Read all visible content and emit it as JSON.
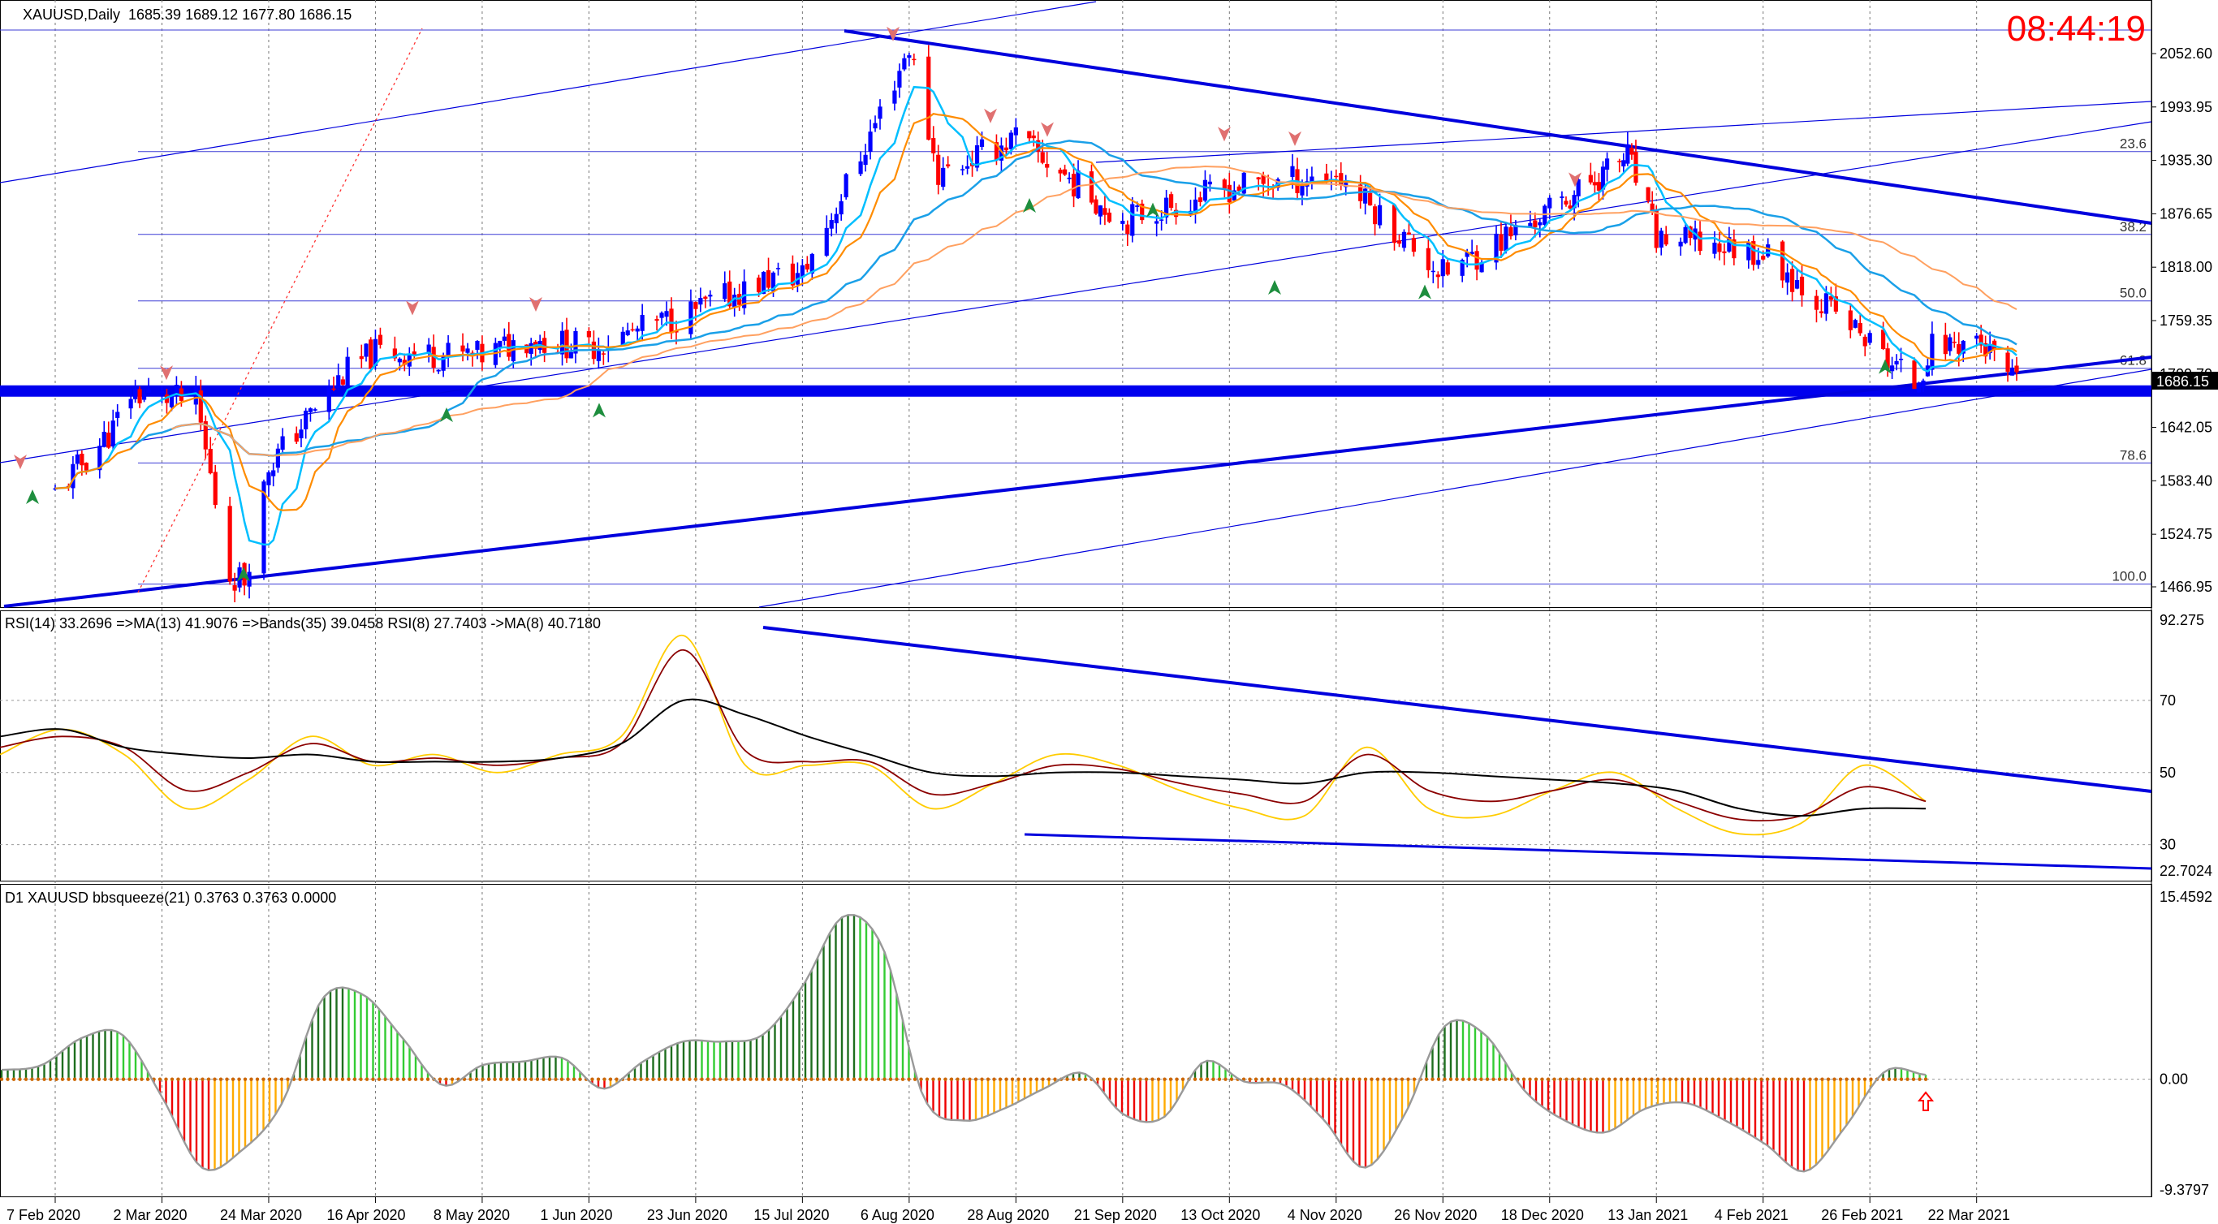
{
  "header": {
    "symbol": "XAUUSD,Daily",
    "ohlc": "1685.39 1689.12 1677.80 1686.15",
    "clock": "08:44:19"
  },
  "price_axis": {
    "ticks": [
      "2052.60",
      "1993.95",
      "1935.30",
      "1876.65",
      "1818.00",
      "1759.35",
      "1700.70",
      "1642.05",
      "1583.40",
      "1524.75",
      "1466.95"
    ],
    "current_price": "1686.15"
  },
  "fibo_levels": [
    {
      "label": "23.6",
      "price": 1945
    },
    {
      "label": "38.2",
      "price": 1854
    },
    {
      "label": "50.0",
      "price": 1781
    },
    {
      "label": "61.8",
      "price": 1707
    },
    {
      "label": "78.6",
      "price": 1603
    },
    {
      "label": "100.0",
      "price": 1470
    }
  ],
  "rsi_panel": {
    "title": "RSI(14) 33.2696  =>MA(13) 41.9076  =>Bands(35) 39.0458  RSI(8) 27.7403  ->MA(8) 40.7180",
    "ticks": [
      "92.275",
      "70",
      "50",
      "30",
      "22.7024"
    ]
  },
  "squeeze_panel": {
    "title": "D1 XAUUSD bbsqueeze(21) 0.3763 0.3763 0.0000",
    "ticks": [
      "15.4592",
      "0.00",
      "-9.3797"
    ]
  },
  "time_axis": {
    "labels": [
      "7 Feb 2020",
      "2 Mar 2020",
      "24 Mar 2020",
      "16 Apr 2020",
      "8 May 2020",
      "1 Jun 2020",
      "23 Jun 2020",
      "15 Jul 2020",
      "6 Aug 2020",
      "28 Aug 2020",
      "21 Sep 2020",
      "13 Oct 2020",
      "4 Nov 2020",
      "26 Nov 2020",
      "18 Dec 2020",
      "13 Jan 2021",
      "4 Feb 2021",
      "26 Feb 2021",
      "22 Mar 2021"
    ]
  },
  "colors": {
    "bull": "#0000ff",
    "bear": "#ff0000",
    "trend": "#0000dd",
    "ma_fast": "#00bfff",
    "ma_mid": "#ff8c00",
    "ma_slow": "#ffa060",
    "ma_long": "#1aa0e8",
    "rsi_fast": "#ffcc00",
    "rsi_ma": "#8b0000",
    "rsi_band": "#000000",
    "hist_pos_strong": "#1e6e1e",
    "hist_pos": "#33cc33",
    "hist_neg_strong": "#ee0000",
    "hist_neg": "#ffaa00"
  },
  "chart_data": [
    {
      "type": "candlestick",
      "title": "XAUUSD,Daily",
      "x_start": "7 Feb 2020",
      "x_end": "22 Mar 2021",
      "ylim": [
        1440,
        2085
      ],
      "anchors_date_price": [
        [
          "7 Feb 2020",
          1570
        ],
        [
          "20 Feb 2020",
          1640
        ],
        [
          "24 Feb 2020",
          1680
        ],
        [
          "9 Mar 2020",
          1670
        ],
        [
          "16 Mar 2020",
          1480
        ],
        [
          "19 Mar 2020",
          1475
        ],
        [
          "24 Mar 2020",
          1600
        ],
        [
          "9 Apr 2020",
          1700
        ],
        [
          "16 Apr 2020",
          1725
        ],
        [
          "8 May 2020",
          1720
        ],
        [
          "18 May 2020",
          1740
        ],
        [
          "1 Jun 2020",
          1730
        ],
        [
          "23 Jun 2020",
          1770
        ],
        [
          "8 Jul 2020",
          1805
        ],
        [
          "15 Jul 2020",
          1810
        ],
        [
          "27 Jul 2020",
          1940
        ],
        [
          "6 Aug 2020",
          2060
        ],
        [
          "12 Aug 2020",
          1920
        ],
        [
          "28 Aug 2020",
          1960
        ],
        [
          "21 Sep 2020",
          1870
        ],
        [
          "13 Oct 2020",
          1905
        ],
        [
          "4 Nov 2020",
          1920
        ],
        [
          "26 Nov 2020",
          1810
        ],
        [
          "18 Dec 2020",
          1880
        ],
        [
          "6 Jan 2021",
          1940
        ],
        [
          "13 Jan 2021",
          1850
        ],
        [
          "4 Feb 2021",
          1835
        ],
        [
          "26 Feb 2021",
          1735
        ],
        [
          "8 Mar 2021",
          1690
        ],
        [
          "12 Mar 2021",
          1730
        ],
        [
          "22 Mar 2021",
          1740
        ],
        [
          "31 Mar 2021",
          1686
        ]
      ],
      "last_close": 1686.15
    },
    {
      "type": "line",
      "title": "RSI(14)",
      "ylim": [
        22.7024,
        92.275
      ],
      "series": [
        {
          "name": "RSI(8)",
          "values": [
            55,
            62,
            55,
            40,
            48,
            60,
            52,
            55,
            50,
            55,
            60,
            88,
            52,
            52,
            52,
            40,
            47,
            55,
            52,
            45,
            40,
            38,
            57,
            40,
            38,
            45,
            50,
            40,
            33,
            36,
            52,
            42
          ]
        },
        {
          "name": "RSI(14)",
          "values": [
            57,
            60,
            57,
            45,
            50,
            58,
            53,
            54,
            52,
            54,
            58,
            84,
            56,
            53,
            53,
            44,
            47,
            52,
            51,
            47,
            44,
            42,
            55,
            45,
            42,
            45,
            48,
            42,
            37,
            38,
            46,
            42
          ]
        },
        {
          "name": "MA(13)",
          "values": [
            60,
            62,
            57,
            55,
            54,
            55,
            53,
            53,
            53,
            54,
            58,
            70,
            66,
            60,
            55,
            50,
            49,
            50,
            50,
            49,
            48,
            47,
            50,
            50,
            49,
            48,
            47,
            45,
            40,
            38,
            40,
            40
          ]
        }
      ]
    },
    {
      "type": "histogram",
      "title": "D1 XAUUSD bbsqueeze(21)",
      "ylim": [
        -9.3797,
        15.4592
      ],
      "values": [
        0.8,
        1.2,
        3.5,
        3.8,
        -1.5,
        -7.5,
        -6.0,
        -2.0,
        6.8,
        7.2,
        3.5,
        -0.5,
        1.2,
        1.5,
        1.8,
        -0.8,
        1.5,
        3.2,
        3.2,
        3.8,
        8.0,
        13.8,
        11.0,
        -1.5,
        -3.5,
        -2.5,
        -0.8,
        0.5,
        -3.0,
        -3.2,
        1.5,
        -0.2,
        -0.5,
        -3.5,
        -7.5,
        -3.0,
        4.5,
        3.8,
        -1.0,
        -3.5,
        -4.5,
        -2.5,
        -2.0,
        -3.5,
        -5.5,
        -7.8,
        -4.0,
        0.7,
        0.38
      ],
      "last_value": 0.3763
    }
  ]
}
